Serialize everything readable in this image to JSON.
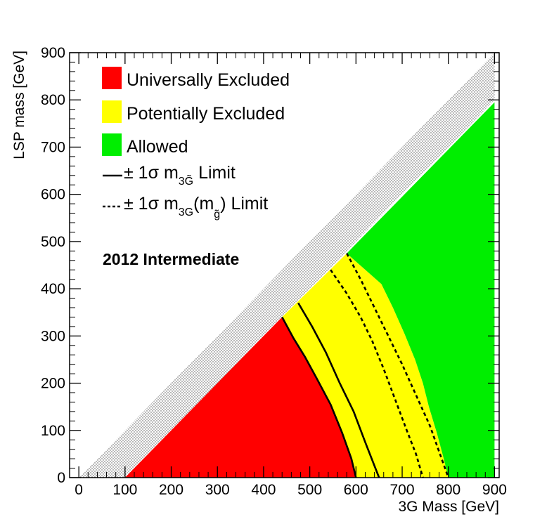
{
  "chart_data": {
    "type": "area",
    "title": "",
    "xlabel": "3G Mass [GeV]",
    "ylabel": "LSP mass [GeV]",
    "xlim": [
      -20,
      910
    ],
    "ylim": [
      0,
      900
    ],
    "x_ticks": [
      0,
      100,
      200,
      300,
      400,
      500,
      600,
      700,
      800,
      900
    ],
    "y_ticks": [
      0,
      100,
      200,
      300,
      400,
      500,
      600,
      700,
      800,
      900
    ],
    "grid": false,
    "legend_position": "top-left",
    "annotation": "2012 Intermediate",
    "colors": {
      "universally_excluded": "#ff0000",
      "potentially_excluded": "#ffff00",
      "allowed": "#00ee00",
      "forbidden_hatch": "#444444"
    },
    "legend": [
      {
        "type": "box",
        "color": "#ff0000",
        "label": "Universally Excluded"
      },
      {
        "type": "box",
        "color": "#ffff00",
        "label": "Potentially Excluded"
      },
      {
        "type": "box",
        "color": "#00ee00",
        "label": "Allowed"
      },
      {
        "type": "solid-line",
        "prefix": "± 1σ m",
        "sub": "3G̃",
        "suffix": " Limit"
      },
      {
        "type": "dashed-line",
        "prefix": "± 1σ m",
        "sub": "3G",
        "mid": "(m",
        "sub2": "g̃",
        "suffix": ") Limit"
      }
    ],
    "regions": [
      {
        "name": "Universally Excluded",
        "color": "#ff0000",
        "boundary": [
          [
            100,
            0
          ],
          [
            600,
            0
          ],
          [
            590,
            40
          ],
          [
            570,
            95
          ],
          [
            545,
            155
          ],
          [
            515,
            210
          ],
          [
            490,
            255
          ],
          [
            465,
            295
          ],
          [
            440,
            340
          ],
          [
            375,
            275
          ],
          [
            100,
            0
          ]
        ]
      },
      {
        "name": "Potentially Excluded",
        "color": "#ffff00",
        "boundary": [
          [
            600,
            0
          ],
          [
            800,
            0
          ],
          [
            790,
            40
          ],
          [
            775,
            95
          ],
          [
            758,
            150
          ],
          [
            745,
            200
          ],
          [
            728,
            250
          ],
          [
            705,
            305
          ],
          [
            680,
            360
          ],
          [
            655,
            410
          ],
          [
            580,
            475
          ],
          [
            440,
            340
          ],
          [
            465,
            295
          ],
          [
            490,
            255
          ],
          [
            515,
            210
          ],
          [
            545,
            155
          ],
          [
            570,
            95
          ],
          [
            590,
            40
          ],
          [
            600,
            0
          ]
        ]
      },
      {
        "name": "Allowed",
        "color": "#00ee00",
        "boundary": [
          [
            800,
            0
          ],
          [
            900,
            0
          ],
          [
            900,
            795
          ],
          [
            580,
            475
          ],
          [
            655,
            410
          ],
          [
            680,
            360
          ],
          [
            705,
            305
          ],
          [
            728,
            250
          ],
          [
            745,
            200
          ],
          [
            758,
            150
          ],
          [
            775,
            95
          ],
          [
            790,
            40
          ],
          [
            800,
            0
          ]
        ]
      }
    ],
    "kinematic_boundary": {
      "name": "LSP = 3G mass diagonal",
      "points": [
        [
          0,
          0
        ],
        [
          900,
          900
        ]
      ],
      "hatched_band_width": 100
    },
    "series": [
      {
        "style": "solid",
        "points": [
          [
            440,
            340
          ],
          [
            465,
            295
          ],
          [
            490,
            255
          ],
          [
            515,
            210
          ],
          [
            545,
            155
          ],
          [
            570,
            95
          ],
          [
            590,
            40
          ],
          [
            600,
            0
          ]
        ]
      },
      {
        "style": "solid",
        "points": [
          [
            475,
            370
          ],
          [
            505,
            320
          ],
          [
            535,
            265
          ],
          [
            565,
            200
          ],
          [
            595,
            140
          ],
          [
            620,
            75
          ],
          [
            650,
            0
          ]
        ]
      },
      {
        "style": "dashed",
        "points": [
          [
            545,
            440
          ],
          [
            580,
            390
          ],
          [
            610,
            340
          ],
          [
            635,
            290
          ],
          [
            660,
            230
          ],
          [
            685,
            165
          ],
          [
            710,
            100
          ],
          [
            730,
            50
          ],
          [
            745,
            0
          ]
        ]
      },
      {
        "style": "dashed",
        "points": [
          [
            580,
            475
          ],
          [
            610,
            420
          ],
          [
            640,
            360
          ],
          [
            670,
            300
          ],
          [
            700,
            240
          ],
          [
            730,
            175
          ],
          [
            760,
            110
          ],
          [
            780,
            55
          ],
          [
            800,
            0
          ]
        ]
      }
    ]
  }
}
